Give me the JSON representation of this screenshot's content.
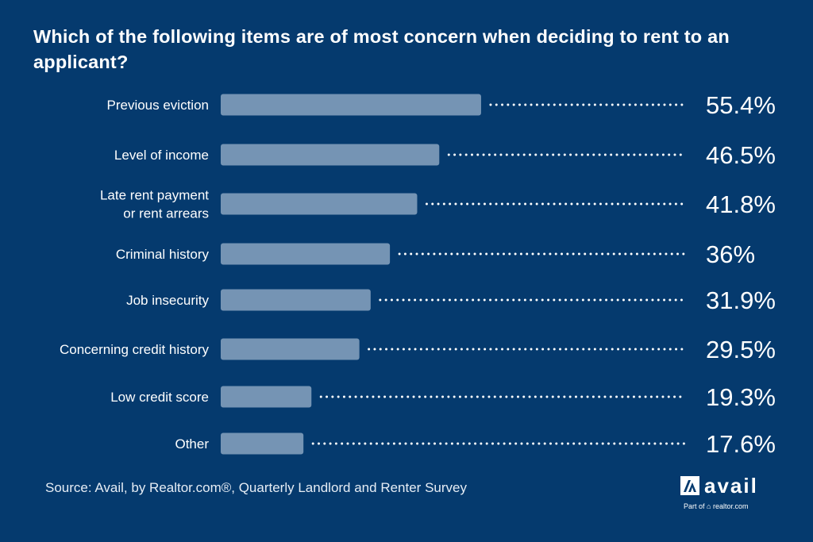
{
  "chart_data": {
    "type": "bar",
    "orientation": "horizontal",
    "title": "Which of the following items are of most concern when deciding to rent to an applicant?",
    "categories": [
      [
        "Previous eviction"
      ],
      [
        "Level of income"
      ],
      [
        "Late rent payment",
        "or rent arrears"
      ],
      [
        "Criminal history"
      ],
      [
        "Job insecurity"
      ],
      [
        "Concerning credit history"
      ],
      [
        "Low credit score"
      ],
      [
        "Other"
      ]
    ],
    "values": [
      55.4,
      46.5,
      41.8,
      36,
      31.9,
      29.5,
      19.3,
      17.6
    ],
    "value_labels": [
      "55.4%",
      "46.5%",
      "41.8%",
      "36%",
      "31.9%",
      "29.5%",
      "19.3%",
      "17.6%"
    ],
    "unit": "%",
    "grid": false,
    "colors": {
      "background": "#053a6e",
      "bar": "#7594b4",
      "text": "#ffffff"
    }
  },
  "source": "Source: Avail, by Realtor.com®, Quarterly Landlord and Renter Survey",
  "logo": {
    "name": "avail",
    "sub": "Part of realtor.com"
  }
}
